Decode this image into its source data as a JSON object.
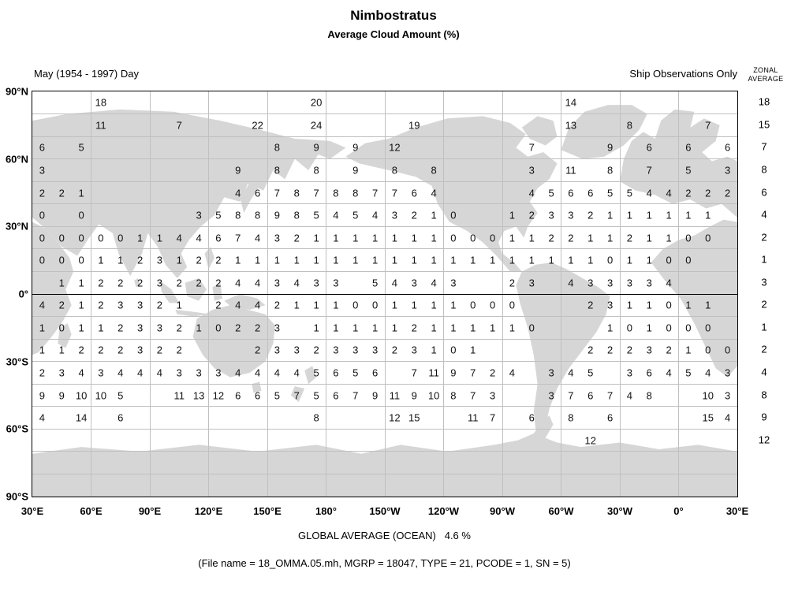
{
  "labels": {
    "zonal_header_line1": "ZONAL",
    "zonal_header_line2": "AVERAGE"
  },
  "footer": {
    "global_average": "GLOBAL AVERAGE (OCEAN)   4.6 %",
    "file_info": "(File name = 18_OMMA.05.mh, MGRP = 18047, TYPE = 21, PCODE = 1, SN = 5)"
  },
  "colors": {
    "land": "#d6d6d6",
    "grid": "#c0c0c0",
    "equator": "#000000",
    "frame": "#000000"
  },
  "chart_data": {
    "type": "heatmap",
    "title": "Nimbostratus",
    "subtitle": "Average Cloud Amount (%)",
    "period": "May (1954 - 1997) Day",
    "source_note": "Ship Observations Only",
    "x_tick_labels": [
      "30°E",
      "60°E",
      "90°E",
      "120°E",
      "150°E",
      "180°",
      "150°W",
      "120°W",
      "90°W",
      "60°W",
      "30°W",
      "0°",
      "30°E"
    ],
    "y_tick_labels": [
      "90°N",
      "60°N",
      "30°N",
      "0°",
      "30°S",
      "60°S",
      "90°S"
    ],
    "lon_start": "30°E",
    "cell_deg": 10,
    "lat_span": "90N to 90S",
    "global_average_ocean_pct": 4.6,
    "rows": [
      {
        "band": "80N-90N",
        "zonal_avg": 18,
        "cells": {
          "3": 18,
          "14": 20,
          "27": 14
        }
      },
      {
        "band": "70N-80N",
        "zonal_avg": 15,
        "cells": {
          "3": 11,
          "7": 7,
          "11": 22,
          "14": 24,
          "19": 19,
          "27": 13,
          "30": 8,
          "34": 7
        }
      },
      {
        "band": "60N-70N",
        "zonal_avg": 7,
        "cells": {
          "0": 6,
          "2": 5,
          "12": 8,
          "14": 9,
          "16": 9,
          "18": 12,
          "25": 7,
          "29": 9,
          "31": 6,
          "33": 6,
          "35": 6
        }
      },
      {
        "band": "50N-60N",
        "zonal_avg": 8,
        "cells": {
          "0": 3,
          "10": 9,
          "12": 8,
          "14": 8,
          "16": 9,
          "18": 8,
          "20": 8,
          "25": 3,
          "27": 11,
          "29": 8,
          "31": 7,
          "33": 5,
          "35": 3
        }
      },
      {
        "band": "40N-50N",
        "zonal_avg": 6,
        "cells": {
          "0": 2,
          "1": 2,
          "2": 1,
          "10": 4,
          "11": 6,
          "12": 7,
          "13": 8,
          "14": 7,
          "15": 8,
          "16": 8,
          "17": 7,
          "18": 7,
          "19": 6,
          "20": 4,
          "25": 4,
          "26": 5,
          "27": 6,
          "28": 6,
          "29": 5,
          "30": 5,
          "31": 4,
          "32": 4,
          "33": 2,
          "34": 2,
          "35": 2
        }
      },
      {
        "band": "30N-40N",
        "zonal_avg": 4,
        "cells": {
          "0": 0,
          "2": 0,
          "8": 3,
          "9": 5,
          "10": 8,
          "11": 8,
          "12": 9,
          "13": 8,
          "14": 5,
          "15": 4,
          "16": 5,
          "17": 4,
          "18": 3,
          "19": 2,
          "20": 1,
          "21": 0,
          "24": 1,
          "25": 2,
          "26": 3,
          "27": 3,
          "28": 2,
          "29": 1,
          "30": 1,
          "31": 1,
          "32": 1,
          "33": 1,
          "34": 1
        }
      },
      {
        "band": "20N-30N",
        "zonal_avg": 2,
        "cells": {
          "0": 0,
          "1": 0,
          "2": 0,
          "3": 0,
          "4": 0,
          "5": 1,
          "6": 1,
          "7": 4,
          "8": 4,
          "9": 6,
          "10": 7,
          "11": 4,
          "12": 3,
          "13": 2,
          "14": 1,
          "15": 1,
          "16": 1,
          "17": 1,
          "18": 1,
          "19": 1,
          "20": 1,
          "21": 0,
          "22": 0,
          "23": 0,
          "24": 1,
          "25": 1,
          "26": 2,
          "27": 2,
          "28": 1,
          "29": 1,
          "30": 2,
          "31": 1,
          "32": 1,
          "33": 0,
          "34": 0
        }
      },
      {
        "band": "10N-20N",
        "zonal_avg": 1,
        "cells": {
          "0": 0,
          "1": 0,
          "2": 0,
          "3": 1,
          "4": 1,
          "5": 2,
          "6": 3,
          "7": 1,
          "8": 2,
          "9": 2,
          "10": 1,
          "11": 1,
          "12": 1,
          "13": 1,
          "14": 1,
          "15": 1,
          "16": 1,
          "17": 1,
          "18": 1,
          "19": 1,
          "20": 1,
          "21": 1,
          "22": 1,
          "23": 1,
          "24": 1,
          "25": 1,
          "26": 1,
          "27": 1,
          "28": 1,
          "29": 0,
          "30": 1,
          "31": 1,
          "32": 0,
          "33": 0
        }
      },
      {
        "band": "EQ-10N",
        "zonal_avg": 3,
        "cells": {
          "1": 1,
          "2": 1,
          "3": 2,
          "4": 2,
          "5": 2,
          "6": 3,
          "7": 2,
          "8": 2,
          "9": 2,
          "10": 4,
          "11": 4,
          "12": 3,
          "13": 4,
          "14": 3,
          "15": 3,
          "17": 5,
          "18": 4,
          "19": 3,
          "20": 4,
          "21": 3,
          "24": 2,
          "25": 3,
          "27": 4,
          "28": 3,
          "29": 3,
          "30": 3,
          "31": 3,
          "32": 4
        }
      },
      {
        "band": "EQ-10S",
        "zonal_avg": 2,
        "cells": {
          "0": 4,
          "1": 2,
          "2": 1,
          "3": 2,
          "4": 3,
          "5": 3,
          "6": 2,
          "7": 1,
          "9": 2,
          "10": 4,
          "11": 4,
          "12": 2,
          "13": 1,
          "14": 1,
          "15": 1,
          "16": 0,
          "17": 0,
          "18": 1,
          "19": 1,
          "20": 1,
          "21": 1,
          "22": 0,
          "23": 0,
          "24": 0,
          "28": 2,
          "29": 3,
          "30": 1,
          "31": 1,
          "32": 0,
          "33": 1,
          "34": 1
        }
      },
      {
        "band": "10S-20S",
        "zonal_avg": 1,
        "cells": {
          "0": 1,
          "1": 0,
          "2": 1,
          "3": 1,
          "4": 2,
          "5": 3,
          "6": 3,
          "7": 2,
          "8": 1,
          "9": 0,
          "10": 2,
          "11": 2,
          "12": 3,
          "14": 1,
          "15": 1,
          "16": 1,
          "17": 1,
          "18": 1,
          "19": 2,
          "20": 1,
          "21": 1,
          "22": 1,
          "23": 1,
          "24": 1,
          "25": 0,
          "29": 1,
          "30": 0,
          "31": 1,
          "32": 0,
          "33": 0,
          "34": 0
        }
      },
      {
        "band": "20S-30S",
        "zonal_avg": 2,
        "cells": {
          "0": 1,
          "1": 1,
          "2": 2,
          "3": 2,
          "4": 2,
          "5": 3,
          "6": 2,
          "7": 2,
          "11": 2,
          "12": 3,
          "13": 3,
          "14": 2,
          "15": 3,
          "16": 3,
          "17": 3,
          "18": 2,
          "19": 3,
          "20": 1,
          "21": 0,
          "22": 1,
          "28": 2,
          "29": 2,
          "30": 2,
          "31": 3,
          "32": 2,
          "33": 1,
          "34": 0,
          "35": 0
        }
      },
      {
        "band": "30S-40S",
        "zonal_avg": 4,
        "cells": {
          "0": 2,
          "1": 3,
          "2": 4,
          "3": 3,
          "4": 4,
          "5": 4,
          "6": 4,
          "7": 3,
          "8": 3,
          "9": 3,
          "10": 4,
          "11": 4,
          "12": 4,
          "13": 4,
          "14": 5,
          "15": 6,
          "16": 5,
          "17": 6,
          "19": 7,
          "20": 11,
          "21": 9,
          "22": 7,
          "23": 2,
          "24": 4,
          "26": 3,
          "27": 4,
          "28": 5,
          "30": 3,
          "31": 6,
          "32": 4,
          "33": 5,
          "34": 4,
          "35": 3
        }
      },
      {
        "band": "40S-50S",
        "zonal_avg": 8,
        "cells": {
          "0": 9,
          "1": 9,
          "2": 10,
          "3": 10,
          "4": 5,
          "7": 11,
          "8": 13,
          "9": 12,
          "10": 6,
          "11": 6,
          "12": 5,
          "13": 7,
          "14": 5,
          "15": 6,
          "16": 7,
          "17": 9,
          "18": 11,
          "19": 9,
          "20": 10,
          "21": 8,
          "22": 7,
          "23": 3,
          "26": 3,
          "27": 7,
          "28": 6,
          "29": 7,
          "30": 4,
          "31": 8,
          "34": 10,
          "35": 3
        }
      },
      {
        "band": "50S-60S",
        "zonal_avg": 9,
        "cells": {
          "0": 4,
          "2": 14,
          "4": 6,
          "14": 8,
          "18": 12,
          "19": 15,
          "22": 11,
          "23": 7,
          "25": 6,
          "27": 8,
          "29": 6,
          "34": 15,
          "35": 4
        }
      },
      {
        "band": "60S-70S",
        "zonal_avg": 12,
        "cells": {
          "28": 12
        }
      }
    ]
  }
}
